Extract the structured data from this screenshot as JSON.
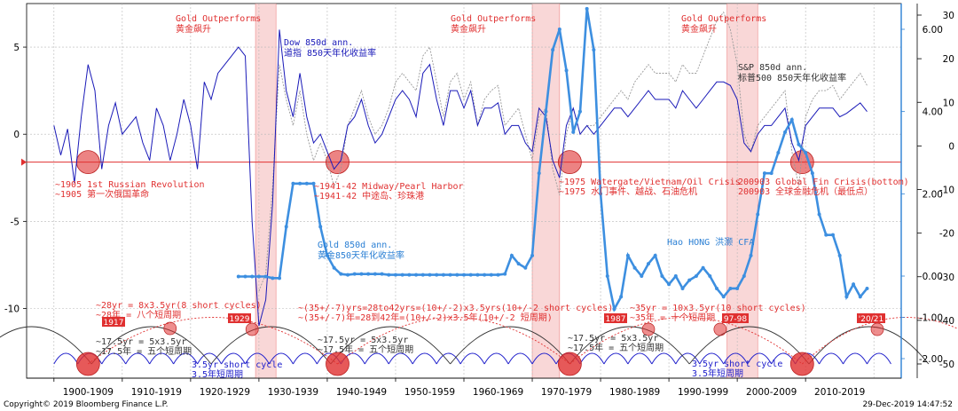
{
  "footer": {
    "copyright": "Copyright© 2019 Bloomberg Finance L.P.",
    "timestamp": "29-Dec-2019 14:47:52"
  },
  "colors": {
    "dow": "#1a1ab8",
    "gold": "#3d8fe0",
    "sp": "#999999",
    "shade": "#f7c6c6",
    "red": "#e03030",
    "cycle_blue": "#2222cc",
    "cycle_black": "#333333",
    "cycle_red": "#e03030"
  },
  "chart_data": {
    "type": "line",
    "x": [
      1900,
      1901,
      1902,
      1903,
      1904,
      1905,
      1906,
      1907,
      1908,
      1909,
      1910,
      1911,
      1912,
      1913,
      1914,
      1915,
      1916,
      1917,
      1918,
      1919,
      1920,
      1921,
      1922,
      1923,
      1924,
      1925,
      1926,
      1927,
      1928,
      1929,
      1930,
      1931,
      1932,
      1933,
      1934,
      1935,
      1936,
      1937,
      1938,
      1939,
      1940,
      1941,
      1942,
      1943,
      1944,
      1945,
      1946,
      1947,
      1948,
      1949,
      1950,
      1951,
      1952,
      1953,
      1954,
      1955,
      1956,
      1957,
      1958,
      1959,
      1960,
      1961,
      1962,
      1963,
      1964,
      1965,
      1966,
      1967,
      1968,
      1969,
      1970,
      1971,
      1972,
      1973,
      1974,
      1975,
      1976,
      1977,
      1978,
      1979,
      1980,
      1981,
      1982,
      1983,
      1984,
      1985,
      1986,
      1987,
      1988,
      1989,
      1990,
      1991,
      1992,
      1993,
      1994,
      1995,
      1996,
      1997,
      1998,
      1999,
      2000,
      2001,
      2002,
      2003,
      2004,
      2005,
      2006,
      2007,
      2008,
      2009,
      2010,
      2011,
      2012,
      2013,
      2014,
      2015,
      2016,
      2017,
      2018,
      2019
    ],
    "series": [
      {
        "name": "Dow 850d ann.",
        "axis": "left",
        "values": [
          0.5,
          -1.2,
          0.3,
          -2.8,
          1.0,
          4.0,
          2.5,
          -2.0,
          0.5,
          1.8,
          0.0,
          0.5,
          1.0,
          -0.5,
          -1.5,
          1.5,
          0.5,
          -1.5,
          0.0,
          2.0,
          0.5,
          -2.0,
          3.0,
          2.0,
          3.5,
          4.0,
          4.5,
          5.0,
          4.5,
          -5.0,
          -11.0,
          -9.5,
          -4.0,
          6.0,
          2.5,
          1.0,
          3.5,
          1.0,
          -0.5,
          0.0,
          -1.0,
          -2.0,
          -1.5,
          0.5,
          1.0,
          2.0,
          0.5,
          -0.5,
          0.0,
          1.0,
          2.0,
          2.5,
          2.0,
          1.0,
          3.5,
          4.0,
          2.0,
          0.5,
          2.5,
          2.5,
          1.5,
          2.5,
          0.5,
          1.5,
          1.5,
          1.8,
          0.0,
          0.5,
          0.5,
          -0.5,
          -1.0,
          1.5,
          1.0,
          -1.5,
          -2.5,
          0.5,
          1.5,
          0.0,
          0.5,
          0.0,
          0.5,
          1.0,
          1.5,
          1.5,
          1.0,
          1.5,
          2.0,
          2.5,
          2.0,
          2.0,
          2.0,
          1.5,
          2.5,
          2.0,
          1.5,
          2.0,
          2.5,
          3.0,
          3.0,
          2.8,
          2.0,
          -0.5,
          -1.0,
          0.0,
          0.5,
          0.5,
          1.0,
          1.5,
          -0.5,
          -1.5,
          0.5,
          1.0,
          1.5,
          1.5,
          1.5,
          1.0,
          1.2,
          1.5,
          1.8,
          1.3
        ]
      },
      {
        "name": "S&P 850d ann.",
        "axis": "left",
        "values": [
          null,
          null,
          null,
          null,
          null,
          null,
          null,
          null,
          null,
          null,
          null,
          null,
          null,
          null,
          null,
          null,
          null,
          null,
          null,
          null,
          null,
          null,
          null,
          null,
          null,
          null,
          null,
          null,
          null,
          null,
          -9.0,
          -8.0,
          -3.0,
          4.0,
          2.0,
          0.5,
          2.5,
          0.0,
          -1.5,
          -0.5,
          -1.5,
          -3.0,
          -2.0,
          0.5,
          1.5,
          2.5,
          1.0,
          0.0,
          0.5,
          1.5,
          3.0,
          3.5,
          3.0,
          2.5,
          4.5,
          5.0,
          3.0,
          1.0,
          3.0,
          3.5,
          2.0,
          3.0,
          0.5,
          2.0,
          2.5,
          2.8,
          0.5,
          1.0,
          1.5,
          0.0,
          -1.5,
          1.0,
          1.5,
          -2.0,
          -3.5,
          0.0,
          1.5,
          0.0,
          0.5,
          0.5,
          1.0,
          1.5,
          2.0,
          2.5,
          2.0,
          3.0,
          3.5,
          4.0,
          3.5,
          3.5,
          3.5,
          3.0,
          4.0,
          3.5,
          3.5,
          4.5,
          5.5,
          6.5,
          7.0,
          6.0,
          4.0,
          0.0,
          -1.0,
          0.5,
          1.0,
          1.5,
          2.0,
          2.5,
          -1.0,
          -3.0,
          1.0,
          2.0,
          2.5,
          2.5,
          2.8,
          2.0,
          2.5,
          3.0,
          3.5,
          2.8
        ]
      },
      {
        "name": "Gold 850d ann.",
        "axis": "right",
        "values": [
          null,
          null,
          null,
          null,
          null,
          null,
          null,
          null,
          null,
          null,
          null,
          null,
          null,
          null,
          null,
          null,
          null,
          null,
          null,
          null,
          null,
          null,
          null,
          null,
          null,
          null,
          null,
          -0.01,
          -0.01,
          -0.01,
          -0.01,
          -0.01,
          -0.05,
          -0.05,
          1.2,
          2.25,
          2.25,
          2.25,
          2.25,
          1.2,
          0.5,
          0.2,
          0.05,
          0.03,
          0.05,
          0.05,
          0.05,
          0.05,
          0.05,
          0.03,
          0.03,
          0.03,
          0.03,
          0.03,
          0.03,
          0.03,
          0.03,
          0.03,
          0.03,
          0.03,
          0.03,
          0.03,
          0.03,
          0.03,
          0.03,
          0.03,
          0.05,
          0.5,
          0.3,
          0.2,
          0.5,
          2.5,
          4.0,
          5.5,
          6.0,
          5.0,
          3.5,
          4.0,
          6.5,
          5.5,
          2.0,
          0.0,
          -0.8,
          -0.5,
          0.5,
          0.2,
          0.0,
          0.3,
          0.5,
          0.0,
          -0.2,
          0.0,
          -0.3,
          -0.1,
          0.0,
          0.2,
          0.0,
          -0.3,
          -0.5,
          -0.3,
          -0.3,
          0.0,
          0.5,
          1.5,
          2.5,
          2.5,
          3.0,
          3.5,
          3.8,
          3.2,
          3.0,
          2.5,
          1.5,
          1.0,
          1.0,
          0.5,
          -0.5,
          -0.2,
          -0.5,
          -0.3
        ]
      }
    ],
    "ylim_left": [
      -14,
      7.5
    ],
    "yticks_left": [
      5,
      0,
      -5,
      -10
    ],
    "yticks_right_outer": [
      30,
      20,
      10,
      0,
      -10,
      -20,
      -30,
      -40,
      -50
    ],
    "yticks_right_inner": [
      "6.00",
      "4.00",
      "2.00",
      "0.00",
      "-1.00",
      "-2.00"
    ],
    "xticks": [
      "1900-1909",
      "1910-1919",
      "1920-1929",
      "1930-1939",
      "1940-1949",
      "1950-1959",
      "1960-1969",
      "1970-1979",
      "1980-1989",
      "1990-1999",
      "2000-2009",
      "2010-2019"
    ],
    "grid": true,
    "shaded_periods": [
      [
        1929.5,
        1932.5
      ],
      [
        1970,
        1974
      ],
      [
        1998.5,
        2003
      ]
    ],
    "gold_outperforms": [
      "Gold Outperforms",
      "黄金飙升"
    ],
    "reference_line_value": -1.6
  },
  "labels": {
    "dow_title": "Dow 850d ann.",
    "dow_sub": "道指 850天年化收益率",
    "sp_title": "S&P 850d ann.",
    "sp_sub": "标普500 850天年化收益率",
    "gold_title": "Gold 850d ann.",
    "gold_sub": "黄金850天年化收益率",
    "hao": "Hao HONG 洪灏 CFA"
  },
  "events": [
    {
      "l1": "~1905 1st Russian Revolution",
      "l2": "~1905 第一次俄国革命"
    },
    {
      "l1": "~1941-42 Midway/Pearl Harbor",
      "l2": "~1941-42 中途岛、珍珠港"
    },
    {
      "l1": "~1975 Watergate/Vietnam/Oil Crisis",
      "l2": "~1975 水门事件、越战、石油危机"
    },
    {
      "l1": "200903 Global Fin Crisis(bottom)",
      "l2": "200903 全球金融危机（最低点）"
    }
  ],
  "cycles": [
    {
      "l1": "~28yr = 8x3.5yr(8 short cycles)",
      "l2": "~28年 = 八个短周期"
    },
    {
      "l1": "~(35+/-7)yrs=28to42yrs=(10+/-2)x3.5yrs(10+/-2 short cycles)",
      "l2": "~(35+/-7)年=28到42年=(10+/-2)x3.5年(10+/-2 短周期)"
    },
    {
      "l1": "~35yr = 10x3.5yr(10 short cycles)",
      "l2": "~35年 = 十个短周期"
    }
  ],
  "sub_cycles": [
    {
      "l1": "~17.5yr = 5x3.5yr",
      "l2": "~17.5年 = 五个短周期"
    },
    {
      "l1": "~17.5yr = 5x3.5yr",
      "l2": "~17.5年 = 五个短周期"
    },
    {
      "l1": "~17.5yr = 5x3.5yr",
      "l2": "~17.5年 = 五个短周期"
    }
  ],
  "short_cycle": [
    {
      "l1": "3.5yr short cycle",
      "l2": "3.5年短周期"
    },
    {
      "l1": "3.5yr short cycle",
      "l2": "3.5年短周期"
    }
  ],
  "year_badges": [
    "1917",
    "1929",
    "1987",
    "97-98",
    "'20/21"
  ]
}
